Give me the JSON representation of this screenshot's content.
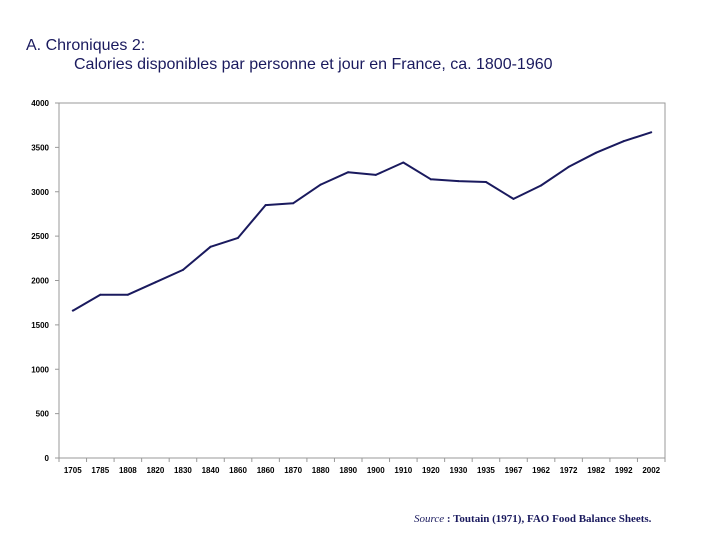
{
  "header": {
    "line1": "A. Chroniques 2:",
    "line2": "Calories disponibles par personne et jour en France, ca. 1800-1960"
  },
  "source": {
    "label": "Source",
    "text": " : Toutain (1971), FAO Food Balance Sheets."
  },
  "colors": {
    "line": "#1a1a5e",
    "axis": "#999999",
    "text": "#1a1a5e"
  },
  "chart_data": {
    "type": "line",
    "title": "Calories disponibles par personne et jour en France, ca. 1800-1960",
    "xlabel": "",
    "ylabel": "",
    "categories": [
      "1705",
      "1785",
      "1808",
      "1820",
      "1830",
      "1840",
      "1860",
      "1860",
      "1870",
      "1880",
      "1890",
      "1900",
      "1910",
      "1920",
      "1930",
      "1935",
      "1967",
      "1962",
      "1972",
      "1982",
      "1992",
      "2002"
    ],
    "series": [
      {
        "name": "Calories",
        "values": [
          1660,
          1840,
          1840,
          1980,
          2120,
          2380,
          2480,
          2850,
          2870,
          3080,
          3220,
          3190,
          3330,
          3140,
          3120,
          3110,
          2920,
          3070,
          3280,
          3440,
          3570,
          3670
        ]
      }
    ],
    "yticks": [
      "0",
      "500",
      "1000",
      "1500",
      "2000",
      "2500",
      "3000",
      "3500",
      "4000"
    ],
    "ylim": [
      0,
      4000
    ],
    "grid": false,
    "legend": "none"
  }
}
